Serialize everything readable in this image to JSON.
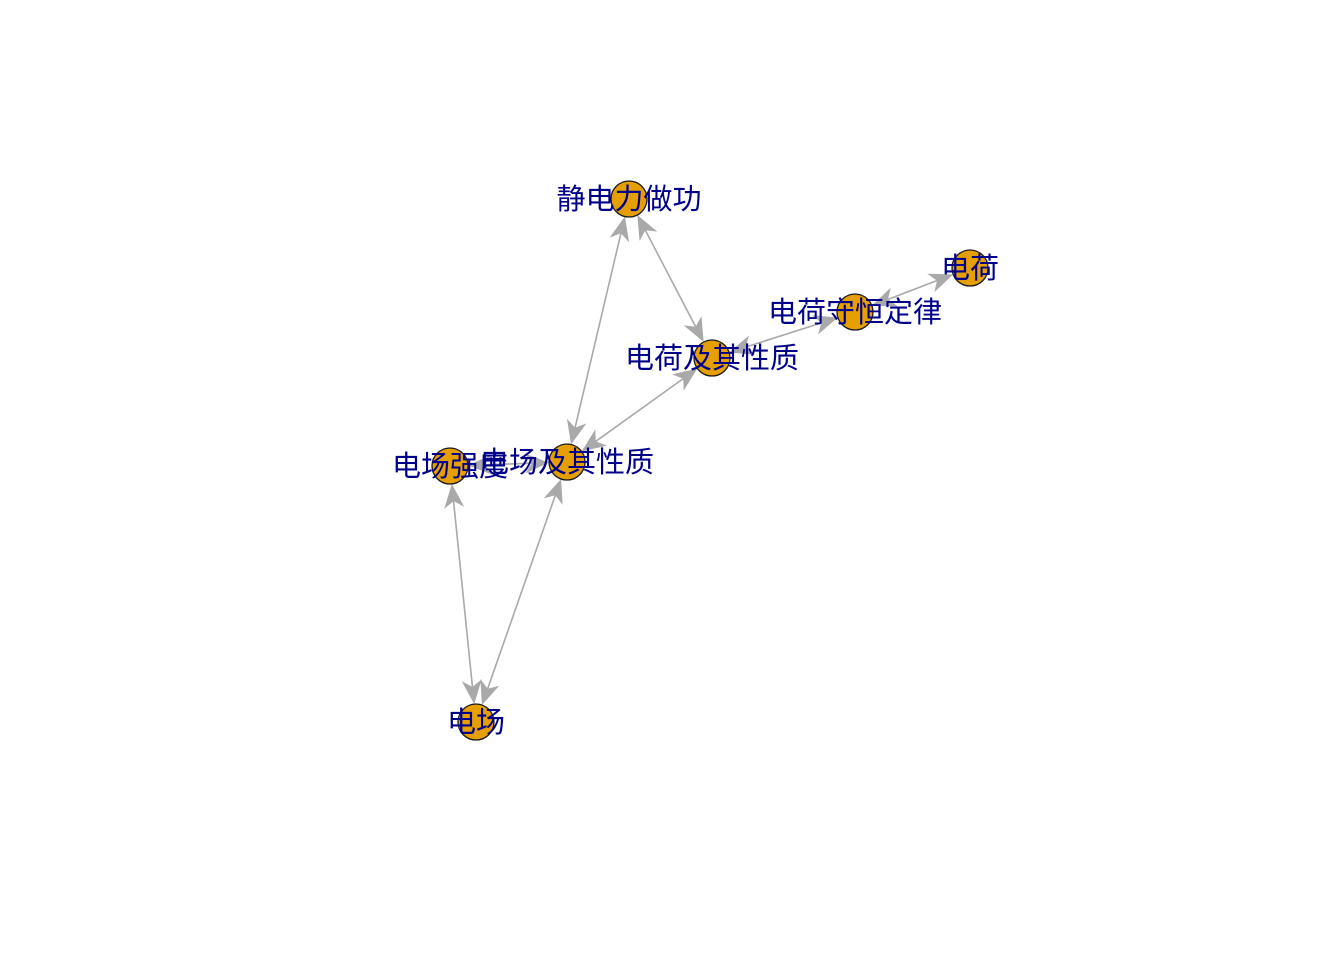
{
  "graph": {
    "style": {
      "node_fill": "#E69F00",
      "node_stroke": "#1a1a1a",
      "edge_color": "#A9A9A9",
      "label_color": "#00008B"
    },
    "nodes": [
      {
        "id": "jingdianli",
        "label": "静电力做功"
      },
      {
        "id": "dianhe",
        "label": "电荷"
      },
      {
        "id": "shouheng",
        "label": "电荷守恒定律"
      },
      {
        "id": "dianhe_xingzhi",
        "label": "电荷及其性质"
      },
      {
        "id": "qiangdu",
        "label": "电场强度"
      },
      {
        "id": "dianchang_xingzhi",
        "label": "电场及其性质"
      },
      {
        "id": "dianchang",
        "label": "电场"
      }
    ],
    "edges": [
      {
        "from": "jingdianli",
        "to": "dianchang_xingzhi",
        "bidirectional": true
      },
      {
        "from": "jingdianli",
        "to": "dianhe_xingzhi",
        "bidirectional": true
      },
      {
        "from": "shouheng",
        "to": "dianhe",
        "bidirectional": true
      },
      {
        "from": "shouheng",
        "to": "dianhe_xingzhi",
        "bidirectional": true
      },
      {
        "from": "dianhe_xingzhi",
        "to": "dianchang_xingzhi",
        "bidirectional": true
      },
      {
        "from": "qiangdu",
        "to": "dianchang_xingzhi",
        "bidirectional": true
      },
      {
        "from": "qiangdu",
        "to": "dianchang",
        "bidirectional": true
      },
      {
        "from": "dianchang_xingzhi",
        "to": "dianchang",
        "bidirectional": true
      }
    ]
  }
}
